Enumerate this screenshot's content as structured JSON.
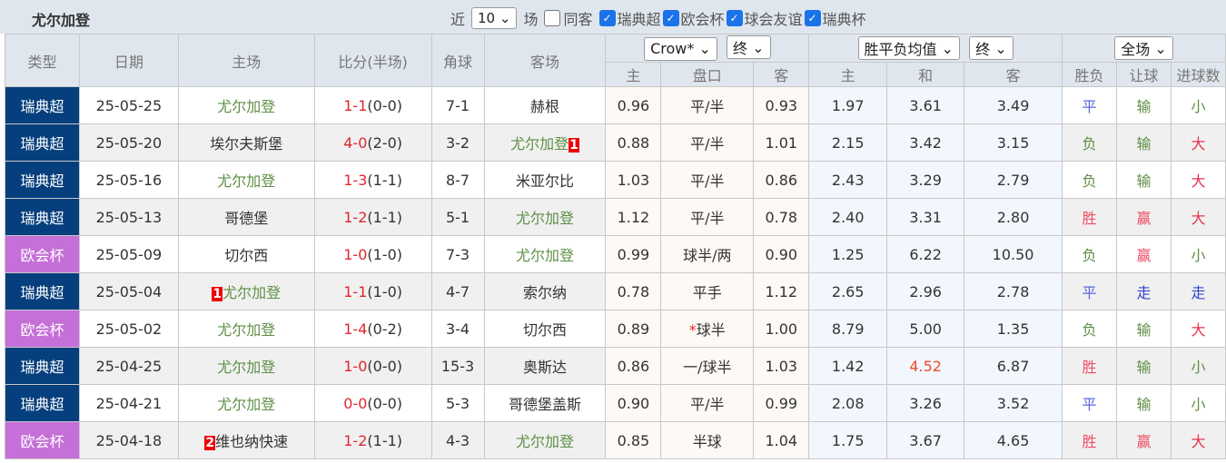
{
  "header": {
    "title": "尤尔加登",
    "recent_label": "近",
    "recent_value": "10",
    "games_label": "场",
    "same_label": "同客",
    "filters": [
      {
        "label": "瑞典超",
        "checked": true
      },
      {
        "label": "欧会杯",
        "checked": true
      },
      {
        "label": "球会友谊",
        "checked": true
      },
      {
        "label": "瑞典杯",
        "checked": true
      }
    ]
  },
  "columns": {
    "type": "类型",
    "date": "日期",
    "home": "主场",
    "score": "比分(半场)",
    "corner": "角球",
    "away": "客场",
    "odds_company": "Crow*",
    "odds_time": "终",
    "euro_type": "胜平负均值",
    "euro_time": "终",
    "period": "全场",
    "sub": [
      "主",
      "盘口",
      "客",
      "主",
      "和",
      "客",
      "胜负",
      "让球",
      "进球数"
    ]
  },
  "colors": {
    "瑞典超": "#063f7d",
    "欧会杯": "#c56fd8",
    "胜": "#ee4b64",
    "负": "#5f8f45",
    "平": "#5566dd",
    "赢": "#ee4b64",
    "输": "#5f8f45",
    "走": "#3344cc",
    "大": "#e8334f",
    "小": "#5f8f45",
    "highlight": "#f04a2a"
  },
  "rows": [
    {
      "type": "瑞典超",
      "date": "25-05-25",
      "home": "尤尔加登",
      "score": "1-1",
      "half": "(0-0)",
      "corner": "7-1",
      "away": "赫根",
      "oh": "0.96",
      "pk": "平/半",
      "oa": "0.93",
      "eh": "1.97",
      "ed": "3.61",
      "ea": "3.49",
      "r": "平",
      "rq": "输",
      "gs": "小"
    },
    {
      "type": "瑞典超",
      "date": "25-05-20",
      "home": "埃尔夫斯堡",
      "score": "4-0",
      "half": "(2-0)",
      "corner": "3-2",
      "away": "尤尔加登",
      "away_badge": "1",
      "oh": "0.88",
      "pk": "平/半",
      "oa": "1.01",
      "eh": "2.15",
      "ed": "3.42",
      "ea": "3.15",
      "r": "负",
      "rq": "输",
      "gs": "大"
    },
    {
      "type": "瑞典超",
      "date": "25-05-16",
      "home": "尤尔加登",
      "score": "1-3",
      "half": "(1-1)",
      "corner": "8-7",
      "away": "米亚尔比",
      "oh": "1.03",
      "pk": "平/半",
      "oa": "0.86",
      "eh": "2.43",
      "ed": "3.29",
      "ea": "2.79",
      "r": "负",
      "rq": "输",
      "gs": "大"
    },
    {
      "type": "瑞典超",
      "date": "25-05-13",
      "home": "哥德堡",
      "score": "1-2",
      "half": "(1-1)",
      "corner": "5-1",
      "away": "尤尔加登",
      "oh": "1.12",
      "pk": "平/半",
      "oa": "0.78",
      "eh": "2.40",
      "ed": "3.31",
      "ea": "2.80",
      "r": "胜",
      "rq": "赢",
      "gs": "大"
    },
    {
      "type": "欧会杯",
      "date": "25-05-09",
      "home": "切尔西",
      "score": "1-0",
      "half": "(1-0)",
      "corner": "7-3",
      "away": "尤尔加登",
      "oh": "0.99",
      "pk": "球半/两",
      "oa": "0.90",
      "eh": "1.25",
      "ed": "6.22",
      "ea": "10.50",
      "r": "负",
      "rq": "赢",
      "gs": "小"
    },
    {
      "type": "瑞典超",
      "date": "25-05-04",
      "home": "尤尔加登",
      "home_badge": "1",
      "score": "1-1",
      "half": "(1-0)",
      "corner": "4-7",
      "away": "索尔纳",
      "oh": "0.78",
      "pk": "平手",
      "oa": "1.12",
      "eh": "2.65",
      "ed": "2.96",
      "ea": "2.78",
      "r": "平",
      "rq": "走",
      "gs": "走"
    },
    {
      "type": "欧会杯",
      "date": "25-05-02",
      "home": "尤尔加登",
      "score": "1-4",
      "half": "(0-2)",
      "corner": "3-4",
      "away": "切尔西",
      "oh": "0.89",
      "pk_star": "*",
      "pk": "球半",
      "oa": "1.00",
      "eh": "8.79",
      "ed": "5.00",
      "ea": "1.35",
      "r": "负",
      "rq": "输",
      "gs": "大"
    },
    {
      "type": "瑞典超",
      "date": "25-04-25",
      "home": "尤尔加登",
      "score": "1-0",
      "half": "(0-0)",
      "corner": "15-3",
      "away": "奥斯达",
      "oh": "0.86",
      "pk": "一/球半",
      "oa": "1.03",
      "eh": "1.42",
      "ed": "4.52",
      "ed_hl": true,
      "ea": "6.87",
      "r": "胜",
      "rq": "输",
      "gs": "小"
    },
    {
      "type": "瑞典超",
      "date": "25-04-21",
      "home": "尤尔加登",
      "score": "0-0",
      "half": "(0-0)",
      "corner": "5-3",
      "away": "哥德堡盖斯",
      "oh": "0.90",
      "pk": "平/半",
      "oa": "0.99",
      "eh": "2.08",
      "ed": "3.26",
      "ea": "3.52",
      "r": "平",
      "rq": "输",
      "gs": "小"
    },
    {
      "type": "欧会杯",
      "date": "25-04-18",
      "home": "维也纳快速",
      "home_badge": "2",
      "score": "1-2",
      "half": "(1-1)",
      "corner": "4-3",
      "away": "尤尔加登",
      "oh": "0.85",
      "pk": "半球",
      "oa": "1.04",
      "eh": "1.75",
      "ed": "3.67",
      "ea": "4.65",
      "r": "胜",
      "rq": "赢",
      "gs": "大"
    }
  ]
}
